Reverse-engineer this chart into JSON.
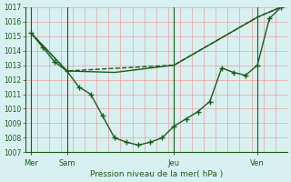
{
  "title": "",
  "xlabel": "Pression niveau de la mer( hPa )",
  "ylabel": "",
  "bg_color": "#d8f0f0",
  "line_color": "#1a5c1a",
  "grid_color": "#e8a0a0",
  "tick_color": "#1a5c1a",
  "ylim": [
    1007,
    1017
  ],
  "yticks": [
    1007,
    1008,
    1009,
    1010,
    1011,
    1012,
    1013,
    1014,
    1015,
    1016,
    1017
  ],
  "day_labels": [
    "Mer",
    "Sam",
    "Jeu",
    "Ven"
  ],
  "day_positions": [
    0,
    3,
    12,
    19
  ],
  "line1_x": [
    0,
    1,
    2,
    3,
    4,
    5,
    6,
    7,
    8,
    9,
    10,
    11,
    12,
    13,
    14,
    15,
    16,
    17,
    18,
    19,
    20,
    21
  ],
  "line1_y": [
    1015.2,
    1014.2,
    1013.2,
    1012.6,
    1011.5,
    1011.0,
    1009.5,
    1008.0,
    1007.7,
    1007.5,
    1007.7,
    1008.0,
    1008.8,
    1009.3,
    1009.8,
    1010.5,
    1012.8,
    1012.5,
    1012.3,
    1013.0,
    1016.2,
    1017.0
  ],
  "line2_x": [
    0,
    3,
    7,
    12,
    19,
    21
  ],
  "line2_y": [
    1015.2,
    1012.6,
    1012.5,
    1013.0,
    1016.3,
    1017.0
  ],
  "line3_x": [
    0,
    3,
    12,
    19,
    21
  ],
  "line3_y": [
    1015.2,
    1012.6,
    1013.0,
    1016.3,
    1017.0
  ]
}
